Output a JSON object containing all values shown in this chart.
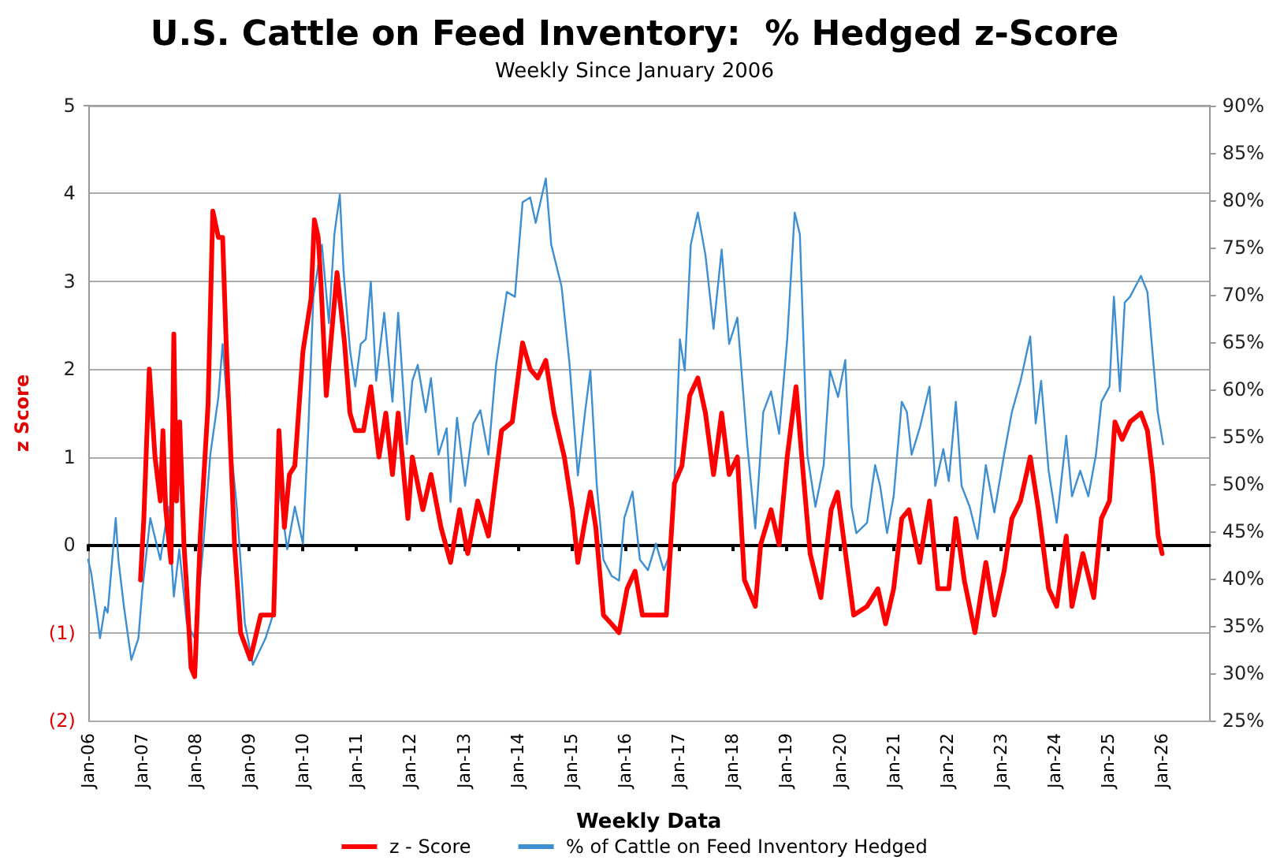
{
  "chart_data": {
    "type": "line",
    "title": "U.S. Cattle on Feed Inventory:  % Hedged z-Score",
    "subtitle": "Weekly Since January 2006",
    "xlabel": "Weekly Data",
    "ylabel": "z Score",
    "legend": "bottom",
    "grid": "y",
    "marker": "none",
    "xlim": [
      "2006-01-01",
      "2026-11-20"
    ],
    "xticks": [
      {
        "value": "2006-01",
        "label": "Jan-06"
      },
      {
        "value": "2007-01",
        "label": "Jan-07"
      },
      {
        "value": "2008-01",
        "label": "Jan-08"
      },
      {
        "value": "2009-01",
        "label": "Jan-09"
      },
      {
        "value": "2010-01",
        "label": "Jan-10"
      },
      {
        "value": "2011-01",
        "label": "Jan-11"
      },
      {
        "value": "2012-01",
        "label": "Jan-12"
      },
      {
        "value": "2013-01",
        "label": "Jan-13"
      },
      {
        "value": "2014-01",
        "label": "Jan-14"
      },
      {
        "value": "2015-01",
        "label": "Jan-15"
      },
      {
        "value": "2016-01",
        "label": "Jan-16"
      },
      {
        "value": "2017-01",
        "label": "Jan-17"
      },
      {
        "value": "2018-01",
        "label": "Jan-18"
      },
      {
        "value": "2019-01",
        "label": "Jan-19"
      },
      {
        "value": "2020-01",
        "label": "Jan-20"
      },
      {
        "value": "2021-01",
        "label": "Jan-21"
      },
      {
        "value": "2022-01",
        "label": "Jan-22"
      },
      {
        "value": "2023-01",
        "label": "Jan-23"
      },
      {
        "value": "2024-01",
        "label": "Jan-24"
      },
      {
        "value": "2025-01",
        "label": "Jan-25"
      },
      {
        "value": "2026-01",
        "label": "Jan-26"
      }
    ],
    "ylim": [
      -2,
      5
    ],
    "yticks": [
      {
        "value": -2,
        "label": "(2)"
      },
      {
        "value": -1,
        "label": "(1)"
      },
      0,
      1,
      2,
      3,
      4,
      5
    ],
    "y2lim": [
      25,
      90
    ],
    "y2ticks": [
      {
        "value": 25,
        "label": "25%"
      },
      {
        "value": 30,
        "label": "30%"
      },
      {
        "value": 35,
        "label": "35%"
      },
      {
        "value": 40,
        "label": "40%"
      },
      {
        "value": 45,
        "label": "45%"
      },
      {
        "value": 50,
        "label": "50%"
      },
      {
        "value": 55,
        "label": "55%"
      },
      {
        "value": 60,
        "label": "60%"
      },
      {
        "value": 65,
        "label": "65%"
      },
      {
        "value": 70,
        "label": "70%"
      },
      {
        "value": 75,
        "label": "75%"
      },
      {
        "value": 80,
        "label": "80%"
      },
      {
        "value": 85,
        "label": "85%"
      },
      {
        "value": 90,
        "label": "90%"
      }
    ],
    "series": [
      {
        "name": "z - Score",
        "color": "#ff0000",
        "x": [
          "2006-12-23",
          "2007-01-15",
          "2007-02-21",
          "2007-04-01",
          "2007-05-07",
          "2007-05-25",
          "2007-06-13",
          "2007-07-19",
          "2007-08-07",
          "2007-08-25",
          "2007-09-16",
          "2007-10-15",
          "2007-11-03",
          "2007-12-02",
          "2007-12-27",
          "2008-02-03",
          "2008-03-27",
          "2008-04-28",
          "2008-06-05",
          "2008-07-04",
          "2008-07-28",
          "2008-09-23",
          "2008-11-03",
          "2009-01-08",
          "2009-03-20",
          "2009-06-16",
          "2009-07-22",
          "2009-08-28",
          "2009-10-01",
          "2009-11-07",
          "2010-01-01",
          "2010-02-25",
          "2010-03-20",
          "2010-04-15",
          "2010-05-03",
          "2010-06-09",
          "2010-07-15",
          "2010-08-21",
          "2010-10-11",
          "2010-11-17",
          "2010-12-23",
          "2011-02-17",
          "2011-04-08",
          "2011-06-02",
          "2011-07-19",
          "2011-09-02",
          "2011-10-11",
          "2011-12-16",
          "2012-01-15",
          "2012-03-27",
          "2012-05-21",
          "2012-07-28",
          "2012-10-01",
          "2012-12-02",
          "2013-01-26",
          "2013-04-04",
          "2013-06-16",
          "2013-09-13",
          "2013-11-25",
          "2014-02-03",
          "2014-03-27",
          "2014-05-17",
          "2014-07-11",
          "2014-09-05",
          "2014-11-14",
          "2015-01-08",
          "2015-02-14",
          "2015-03-27",
          "2015-05-10",
          "2015-06-16",
          "2015-08-07",
          "2015-10-01",
          "2015-11-21",
          "2016-01-15",
          "2016-03-09",
          "2016-04-28",
          "2016-07-11",
          "2016-10-08",
          "2016-12-02",
          "2017-01-22",
          "2017-03-16",
          "2017-05-10",
          "2017-07-01",
          "2017-08-25",
          "2017-10-19",
          "2017-12-09",
          "2018-02-03",
          "2018-03-23",
          "2018-06-05",
          "2018-07-11",
          "2018-09-20",
          "2018-11-14",
          "2019-01-08",
          "2019-03-09",
          "2019-04-22",
          "2019-06-13",
          "2019-08-25",
          "2019-11-03",
          "2019-12-16",
          "2020-04-04",
          "2020-07-04",
          "2020-09-16",
          "2020-11-07",
          "2021-01-01",
          "2021-02-25",
          "2021-04-15",
          "2021-06-27",
          "2021-09-02",
          "2021-10-29",
          "2022-01-11",
          "2022-02-28",
          "2022-04-26",
          "2022-07-08",
          "2022-09-20",
          "2022-11-17",
          "2023-01-22",
          "2023-03-16",
          "2023-05-14",
          "2023-07-19",
          "2023-09-13",
          "2023-11-21",
          "2024-01-15",
          "2024-03-20",
          "2024-04-28",
          "2024-07-11",
          "2024-09-23",
          "2024-11-14",
          "2025-01-08",
          "2025-02-14",
          "2025-04-04",
          "2025-05-28",
          "2025-08-10",
          "2025-09-23",
          "2025-10-29",
          "2025-12-05",
          "2026-01-01"
        ],
        "values": [
          -0.4,
          0.3,
          2.0,
          1.0,
          0.5,
          1.3,
          0.4,
          -0.2,
          2.4,
          0.5,
          1.4,
          0.0,
          -0.5,
          -1.4,
          -1.5,
          0.1,
          1.6,
          3.8,
          3.5,
          3.5,
          2.3,
          0.0,
          -1.0,
          -1.3,
          -0.8,
          -0.8,
          1.3,
          0.2,
          0.8,
          0.9,
          2.2,
          2.8,
          3.7,
          3.5,
          3.0,
          1.7,
          2.4,
          3.1,
          2.3,
          1.5,
          1.3,
          1.3,
          1.8,
          1.0,
          1.5,
          0.8,
          1.5,
          0.3,
          1.0,
          0.4,
          0.8,
          0.2,
          -0.2,
          0.4,
          -0.1,
          0.5,
          0.1,
          1.3,
          1.4,
          2.3,
          2.0,
          1.9,
          2.1,
          1.5,
          1.0,
          0.4,
          -0.2,
          0.2,
          0.6,
          0.2,
          -0.8,
          -0.9,
          -1.0,
          -0.5,
          -0.3,
          -0.8,
          -0.8,
          -0.8,
          0.7,
          0.9,
          1.7,
          1.9,
          1.5,
          0.8,
          1.5,
          0.8,
          1.0,
          -0.4,
          -0.7,
          0.0,
          0.4,
          0.0,
          1.0,
          1.8,
          0.9,
          -0.1,
          -0.6,
          0.4,
          0.6,
          -0.8,
          -0.7,
          -0.5,
          -0.9,
          -0.5,
          0.3,
          0.4,
          -0.2,
          0.5,
          -0.5,
          -0.5,
          0.3,
          -0.4,
          -1.0,
          -0.2,
          -0.8,
          -0.3,
          0.3,
          0.5,
          1.0,
          0.4,
          -0.5,
          -0.7,
          0.1,
          -0.7,
          -0.1,
          -0.6,
          0.3,
          0.5,
          1.4,
          1.2,
          1.4,
          1.5,
          1.3,
          0.8,
          0.1,
          -0.1
        ]
      },
      {
        "name": "% of Cattle on Feed Inventory Hedged",
        "color": "#3d8fd1",
        "axis": "y2",
        "x": [
          "2006-01-01",
          "2006-01-22",
          "2006-03-05",
          "2006-03-23",
          "2006-04-26",
          "2006-05-14",
          "2006-07-08",
          "2006-07-26",
          "2006-09-02",
          "2006-10-22",
          "2006-12-09",
          "2007-01-04",
          "2007-02-28",
          "2007-05-07",
          "2007-07-01",
          "2007-08-07",
          "2007-09-13",
          "2007-11-03",
          "2007-12-27",
          "2008-02-21",
          "2008-04-11",
          "2008-06-05",
          "2008-07-04",
          "2008-08-17",
          "2008-10-08",
          "2008-12-02",
          "2009-01-26",
          "2009-04-22",
          "2009-06-16",
          "2009-07-22",
          "2009-09-16",
          "2009-11-07",
          "2010-01-01",
          "2010-02-07",
          "2010-03-13",
          "2010-04-15",
          "2010-05-10",
          "2010-06-27",
          "2010-08-03",
          "2010-09-09",
          "2010-10-04",
          "2010-11-17",
          "2010-12-23",
          "2011-01-29",
          "2011-03-05",
          "2011-04-08",
          "2011-05-14",
          "2011-07-08",
          "2011-09-02",
          "2011-10-11",
          "2011-12-09",
          "2012-01-15",
          "2012-02-21",
          "2012-04-15",
          "2012-05-21",
          "2012-07-11",
          "2012-09-05",
          "2012-10-01",
          "2012-11-14",
          "2013-01-08",
          "2013-03-05",
          "2013-04-22",
          "2013-06-16",
          "2013-08-07",
          "2013-10-19",
          "2013-12-13",
          "2014-02-03",
          "2014-03-27",
          "2014-05-03",
          "2014-07-11",
          "2014-08-17",
          "2014-10-26",
          "2014-12-20",
          "2015-02-14",
          "2015-04-04",
          "2015-05-10",
          "2015-06-23",
          "2015-08-07",
          "2015-10-01",
          "2015-11-21",
          "2015-12-27",
          "2016-02-21",
          "2016-04-11",
          "2016-06-05",
          "2016-07-29",
          "2016-09-20",
          "2016-11-14",
          "2017-01-08",
          "2017-02-10",
          "2017-03-23",
          "2017-05-10",
          "2017-07-01",
          "2017-08-25",
          "2017-10-19",
          "2017-12-09",
          "2018-02-03",
          "2018-04-11",
          "2018-06-05",
          "2018-07-29",
          "2018-09-20",
          "2018-11-14",
          "2019-01-08",
          "2019-02-28",
          "2019-04-04",
          "2019-05-25",
          "2019-07-19",
          "2019-09-13",
          "2019-10-26",
          "2019-12-20",
          "2020-02-07",
          "2020-03-20",
          "2020-04-22",
          "2020-07-04",
          "2020-08-28",
          "2020-10-01",
          "2020-11-17",
          "2021-01-01",
          "2021-02-25",
          "2021-04-01",
          "2021-05-03",
          "2021-06-27",
          "2021-09-02",
          "2021-10-11",
          "2021-12-05",
          "2022-01-11",
          "2022-02-28",
          "2022-04-08",
          "2022-06-02",
          "2022-07-26",
          "2022-09-20",
          "2022-11-17",
          "2023-01-22",
          "2023-03-16",
          "2023-05-14",
          "2023-07-19",
          "2023-08-25",
          "2023-10-01",
          "2023-11-21",
          "2024-01-15",
          "2024-03-20",
          "2024-04-28",
          "2024-06-23",
          "2024-08-17",
          "2024-10-08",
          "2024-11-14",
          "2025-01-08",
          "2025-02-07",
          "2025-03-20",
          "2025-04-22",
          "2025-05-28",
          "2025-08-10",
          "2025-09-23",
          "2025-10-26",
          "2025-12-02",
          "2026-01-08"
        ],
        "values": [
          42.0,
          40.6,
          35.9,
          33.7,
          37.0,
          36.4,
          46.4,
          42.0,
          37.0,
          31.4,
          33.7,
          38.7,
          46.4,
          42.0,
          47.6,
          38.1,
          43.1,
          35.3,
          33.7,
          43.1,
          53.1,
          59.2,
          64.8,
          55.9,
          47.6,
          35.3,
          30.9,
          33.7,
          36.4,
          49.8,
          43.1,
          47.6,
          43.7,
          55.9,
          69.8,
          73.1,
          75.3,
          67.0,
          76.4,
          80.6,
          72.6,
          64.2,
          60.3,
          64.8,
          65.3,
          71.4,
          60.9,
          68.1,
          58.7,
          68.1,
          54.2,
          60.9,
          62.6,
          57.6,
          61.2,
          53.1,
          55.9,
          48.1,
          57.0,
          49.8,
          56.4,
          57.8,
          53.1,
          62.6,
          70.3,
          69.8,
          79.8,
          80.3,
          77.6,
          82.3,
          75.3,
          70.9,
          62.6,
          50.9,
          57.6,
          62.0,
          49.8,
          42.0,
          40.3,
          39.8,
          46.4,
          49.2,
          42.0,
          40.9,
          43.7,
          40.9,
          43.1,
          65.3,
          62.0,
          75.3,
          78.7,
          74.2,
          66.4,
          74.8,
          64.8,
          67.6,
          54.2,
          45.3,
          57.6,
          59.8,
          55.3,
          65.3,
          78.7,
          76.4,
          53.1,
          47.6,
          52.0,
          62.0,
          59.2,
          63.1,
          47.6,
          44.8,
          45.9,
          52.0,
          49.8,
          44.8,
          48.7,
          58.7,
          57.6,
          53.1,
          55.9,
          60.3,
          49.8,
          53.7,
          50.3,
          58.7,
          49.8,
          47.6,
          44.2,
          52.0,
          47.0,
          53.1,
          57.6,
          60.9,
          65.6,
          56.4,
          60.9,
          51.4,
          45.9,
          55.1,
          48.7,
          51.4,
          48.7,
          53.1,
          58.7,
          60.3,
          69.8,
          59.8,
          69.2,
          69.8,
          72.0,
          70.3,
          64.2,
          57.6,
          54.2
        ]
      }
    ]
  }
}
